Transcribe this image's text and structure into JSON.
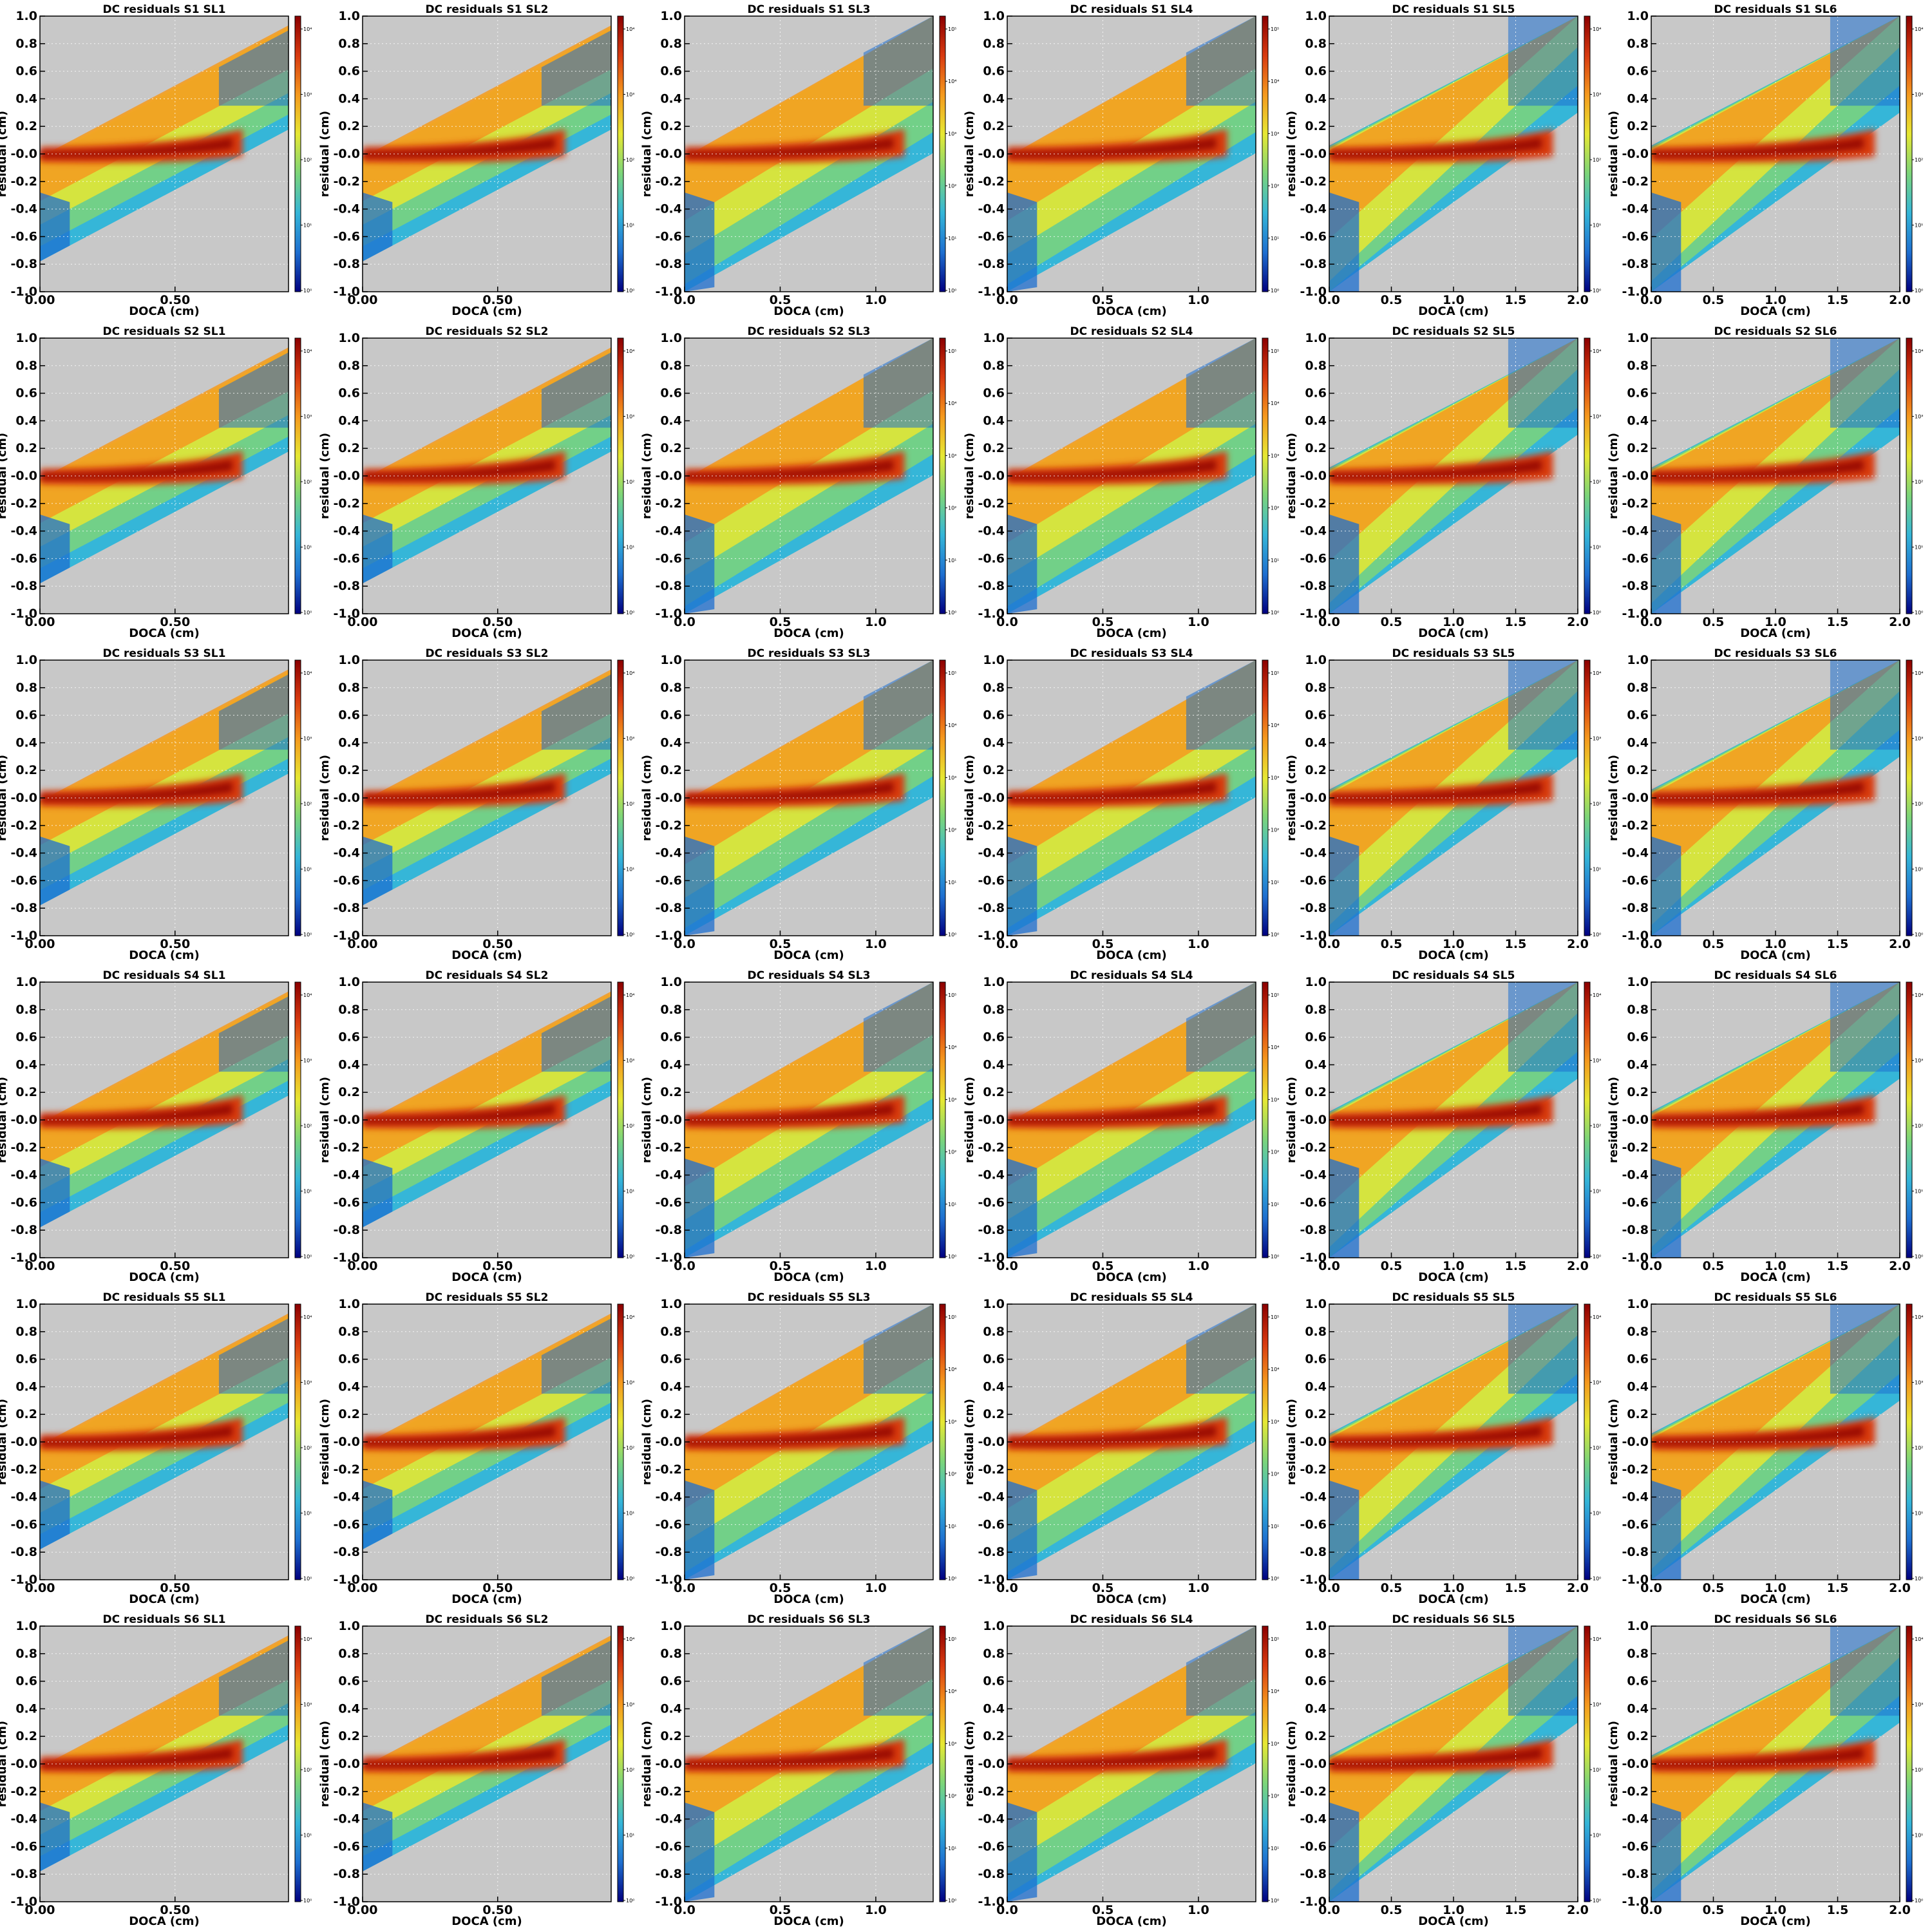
{
  "figure": {
    "title_prefix": "DC residuals",
    "background_color": "#c8c8c8",
    "grid_color": "#ffffff"
  },
  "chart_data": {
    "type": "heatmap",
    "color_scale": "log",
    "colormap": [
      "#00007f",
      "#1e6fd0",
      "#35b6d8",
      "#7cd57a",
      "#e6e833",
      "#f59a1e",
      "#d83a10",
      "#8b0000"
    ],
    "ylabel": "residual (cm)",
    "xlabel": "DOCA (cm)",
    "ylim": [
      -1.0,
      1.0
    ],
    "yticks": [
      "-1.0",
      "-0.8",
      "-0.6",
      "-0.4",
      "-0.2",
      "-0.0",
      "0.2",
      "0.4",
      "0.6",
      "0.8",
      "1.0"
    ],
    "sectors": [
      "S1",
      "S2",
      "S3",
      "S4",
      "S5",
      "S6"
    ],
    "superlayers": [
      {
        "name": "SL1",
        "xlim": [
          0,
          0.92
        ],
        "xticks": [
          "0.00",
          "0.50"
        ],
        "xtick_values": [
          0,
          0.5
        ],
        "colorbar_ticks": [
          "10⁰",
          "10¹",
          "10²",
          "10³",
          "10⁴"
        ]
      },
      {
        "name": "SL2",
        "xlim": [
          0,
          0.92
        ],
        "xticks": [
          "0.00",
          "0.50"
        ],
        "xtick_values": [
          0,
          0.5
        ],
        "colorbar_ticks": [
          "10⁰",
          "10¹",
          "10²",
          "10³",
          "10⁴"
        ]
      },
      {
        "name": "SL3",
        "xlim": [
          0,
          1.3
        ],
        "xticks": [
          "0.0",
          "0.5",
          "1.0"
        ],
        "xtick_values": [
          0,
          0.5,
          1.0
        ],
        "colorbar_ticks": [
          "10⁰",
          "10¹",
          "10²",
          "10³",
          "10⁴",
          "10⁵"
        ]
      },
      {
        "name": "SL4",
        "xlim": [
          0,
          1.3
        ],
        "xticks": [
          "0.0",
          "0.5",
          "1.0"
        ],
        "xtick_values": [
          0,
          0.5,
          1.0
        ],
        "colorbar_ticks": [
          "10⁰",
          "10¹",
          "10²",
          "10³",
          "10⁴",
          "10⁵"
        ]
      },
      {
        "name": "SL5",
        "xlim": [
          0,
          2.0
        ],
        "xticks": [
          "0.0",
          "0.5",
          "1.0",
          "1.5",
          "2.0"
        ],
        "xtick_values": [
          0,
          0.5,
          1.0,
          1.5,
          2.0
        ],
        "colorbar_ticks": [
          "10⁰",
          "10¹",
          "10²",
          "10³",
          "10⁴"
        ]
      },
      {
        "name": "SL6",
        "xlim": [
          0,
          2.0
        ],
        "xticks": [
          "0.0",
          "0.5",
          "1.0",
          "1.5",
          "2.0"
        ],
        "xtick_values": [
          0,
          0.5,
          1.0,
          1.5,
          2.0
        ],
        "colorbar_ticks": [
          "10⁰",
          "10¹",
          "10²",
          "10³",
          "10⁴"
        ]
      }
    ],
    "band_shape": [
      {
        "slope": 1.04,
        "offset_top": -0.06,
        "offset_bottom": -0.78,
        "peak_end_doca": 0.75
      },
      {
        "slope": 1.04,
        "offset_top": -0.06,
        "offset_bottom": -0.78,
        "peak_end_doca": 0.75
      },
      {
        "slope": 0.85,
        "offset_top": -0.06,
        "offset_bottom": -1.1,
        "peak_end_doca": 1.15
      },
      {
        "slope": 0.85,
        "offset_top": -0.06,
        "offset_bottom": -1.1,
        "peak_end_doca": 1.15
      },
      {
        "slope": 0.85,
        "offset_top": 0.06,
        "offset_bottom": -1.4,
        "peak_end_doca": 1.8
      },
      {
        "slope": 0.85,
        "offset_top": 0.06,
        "offset_bottom": -1.4,
        "peak_end_doca": 1.8
      }
    ]
  }
}
